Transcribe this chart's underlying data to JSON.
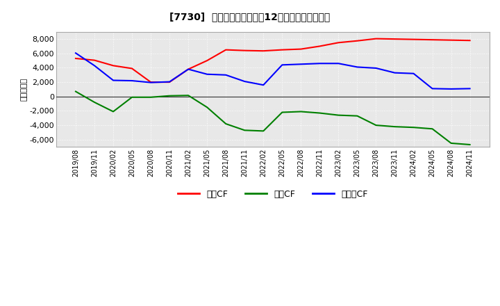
{
  "title": "[7730]  キャッシュフローの12か月移動合計の推移",
  "ylabel": "（百万円）",
  "background_color": "#ffffff",
  "plot_bg_color": "#e8e8e8",
  "grid_color": "#ffffff",
  "ylim": [
    -7000,
    9000
  ],
  "yticks": [
    -6000,
    -4000,
    -2000,
    0,
    2000,
    4000,
    6000,
    8000
  ],
  "dates": [
    "2019/08",
    "2019/11",
    "2020/02",
    "2020/05",
    "2020/08",
    "2020/11",
    "2021/02",
    "2021/05",
    "2021/08",
    "2021/11",
    "2022/02",
    "2022/05",
    "2022/08",
    "2022/11",
    "2023/02",
    "2023/05",
    "2023/08",
    "2023/11",
    "2024/02",
    "2024/05",
    "2024/08",
    "2024/11"
  ],
  "operating_cf": [
    5300,
    5050,
    4300,
    3900,
    2000,
    2000,
    3800,
    5000,
    6500,
    6400,
    6350,
    6500,
    6600,
    7000,
    7500,
    7750,
    8050,
    8000,
    7950,
    7900,
    7850,
    7800
  ],
  "investing_cf": [
    700,
    -800,
    -2100,
    -100,
    -100,
    100,
    150,
    -1500,
    -3800,
    -4700,
    -4800,
    -2200,
    -2100,
    -2300,
    -2600,
    -2700,
    -4000,
    -4200,
    -4300,
    -4500,
    -6500,
    -6700
  ],
  "free_cf": [
    6050,
    4300,
    2250,
    2200,
    1950,
    2050,
    3800,
    3100,
    3000,
    2100,
    1600,
    4400,
    4500,
    4600,
    4600,
    4100,
    3950,
    3300,
    3200,
    1100,
    1050,
    1100
  ],
  "colors": {
    "operating": "#ff0000",
    "investing": "#008000",
    "free": "#0000ff"
  },
  "legend_labels": [
    "営業CF",
    "投資CF",
    "フリーCF"
  ]
}
